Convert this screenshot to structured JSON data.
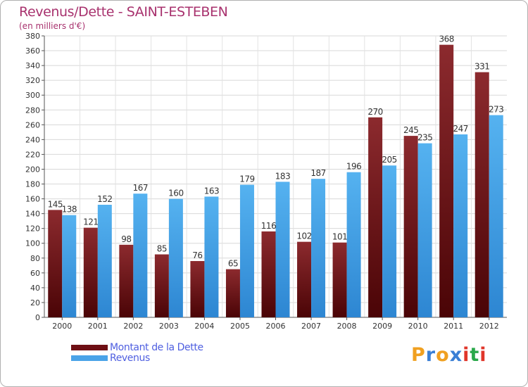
{
  "header": {
    "title": "Revenus/Dette - SAINT-ESTEBEN",
    "subtitle": "(en milliers d'€)"
  },
  "legend": {
    "items": [
      {
        "label": "Montant de la Dette",
        "color": "#6e0f14"
      },
      {
        "label": "Revenus",
        "color": "#4aa3e8"
      }
    ]
  },
  "logo": {
    "letters": [
      "P",
      "r",
      "o",
      "x",
      "i",
      "t",
      "i"
    ],
    "colors": [
      "#f0a020",
      "#3a7fd5",
      "#f0a020",
      "#3a7fd5",
      "#e0352a",
      "#2aa84a",
      "#e0352a"
    ]
  },
  "chart_data": {
    "type": "bar",
    "title": "Revenus/Dette - SAINT-ESTEBEN",
    "subtitle": "(en milliers d'€)",
    "xlabel": "",
    "ylabel": "",
    "categories": [
      "2000",
      "2001",
      "2002",
      "2003",
      "2004",
      "2005",
      "2006",
      "2007",
      "2008",
      "2009",
      "2010",
      "2011",
      "2012"
    ],
    "series": [
      {
        "name": "Montant de la Dette",
        "color": "#6e0f14",
        "values": [
          145,
          121,
          98,
          85,
          76,
          65,
          116,
          102,
          101,
          270,
          245,
          368,
          331
        ]
      },
      {
        "name": "Revenus",
        "color": "#4aa3e8",
        "values": [
          138,
          152,
          167,
          160,
          163,
          179,
          183,
          187,
          196,
          205,
          235,
          247,
          273
        ]
      }
    ],
    "ylim": [
      0,
      380
    ],
    "yticks": [
      0,
      20,
      40,
      60,
      80,
      100,
      120,
      140,
      160,
      180,
      200,
      220,
      240,
      260,
      280,
      300,
      320,
      340,
      360,
      380
    ],
    "grid": true,
    "legend_position": "bottom-left"
  }
}
